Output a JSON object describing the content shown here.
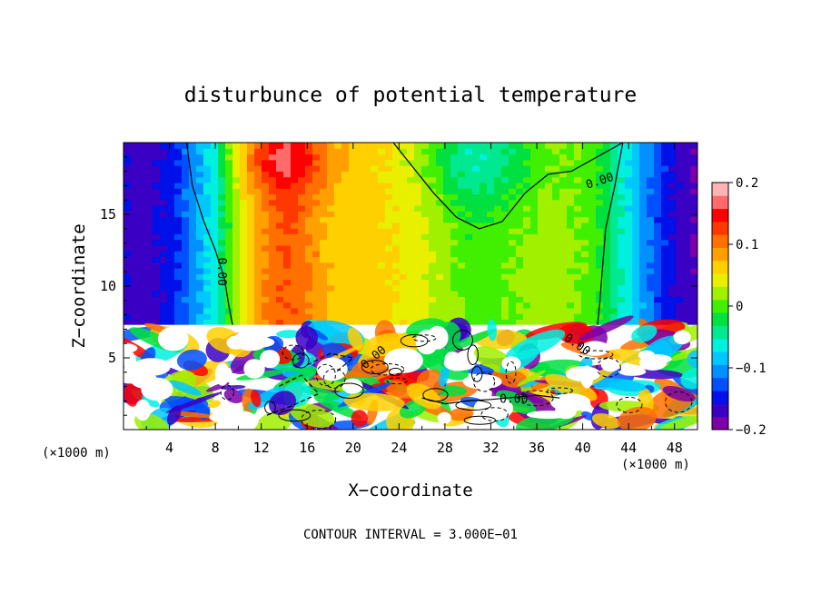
{
  "chart_data": {
    "type": "heatmap",
    "title": "disturbunce of potential temperature",
    "xlabel": "X−coordinate",
    "ylabel": "Z−coordinate",
    "x_unit": "(×1000 m)",
    "x_unit_right": "(×1000 m)",
    "footer": "CONTOUR INTERVAL = 3.000E−01",
    "xlim": [
      0,
      50
    ],
    "ylim": [
      0,
      20
    ],
    "x_ticks": [
      4,
      8,
      12,
      16,
      20,
      24,
      28,
      32,
      36,
      40,
      44,
      48
    ],
    "y_ticks": [
      5,
      10,
      15
    ],
    "colorbar": {
      "range": [
        -0.2,
        0.2
      ],
      "tick_values": [
        0.2,
        0.1,
        0,
        -0.1,
        -0.2
      ],
      "tick_labels": [
        "0.2",
        "0.1",
        "0",
        "−0.1",
        "−0.2"
      ],
      "colors": [
        "#7b00a8",
        "#3a00c4",
        "#0010e8",
        "#0050ff",
        "#0090ff",
        "#00c8ff",
        "#00f0e0",
        "#00e890",
        "#00e040",
        "#40f000",
        "#a0f000",
        "#e8f000",
        "#ffd000",
        "#ffa000",
        "#ff7000",
        "#ff3800",
        "#ff0000",
        "#ff6a6a",
        "#ffb4b4"
      ]
    },
    "contour_labels": [
      {
        "text": "0.00",
        "x": 41.5,
        "z": 17.3,
        "rotate": -18
      },
      {
        "text": "0.00",
        "x": 8.5,
        "z": 11.0,
        "rotate": 90
      },
      {
        "text": "0.00",
        "x": 34.0,
        "z": 2.1,
        "rotate": 0
      },
      {
        "text": "0.00",
        "x": 39.5,
        "z": 5.9,
        "rotate": 35
      },
      {
        "text": "0.00",
        "x": 21.8,
        "z": 5.0,
        "rotate": -40
      }
    ],
    "field": {
      "upper_layer_z_min": 7.3,
      "upper_profile_x": [
        0,
        2,
        4,
        6,
        8,
        10,
        12,
        14,
        16,
        18,
        20,
        22,
        24,
        26,
        28,
        30,
        32,
        34,
        36,
        38,
        40,
        42,
        44,
        46,
        48,
        50
      ],
      "upper_profile_value": [
        -0.16,
        -0.17,
        -0.15,
        -0.11,
        -0.06,
        0.03,
        0.09,
        0.12,
        0.1,
        0.07,
        0.06,
        0.06,
        0.05,
        0.04,
        0.02,
        0.0,
        0.0,
        0.01,
        0.02,
        0.02,
        0.01,
        -0.02,
        -0.07,
        -0.12,
        -0.16,
        -0.18
      ],
      "lower_layer_style": "turbulent white cells with contours"
    }
  }
}
